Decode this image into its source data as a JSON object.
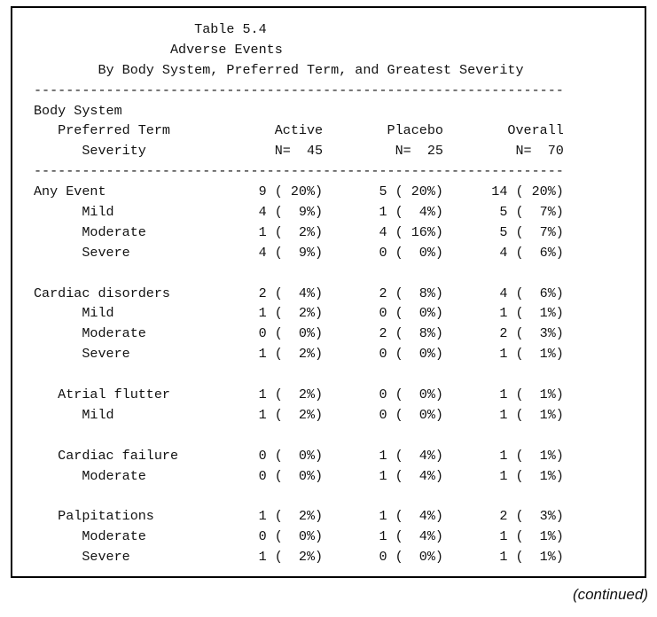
{
  "document": {
    "lines": [
      "                    Table 5.4",
      "                 Adverse Events",
      "        By Body System, Preferred Term, and Greatest Severity",
      "------------------------------------------------------------------",
      "Body System",
      "   Preferred Term             Active        Placebo        Overall",
      "      Severity                N=  45         N=  25         N=  70",
      "------------------------------------------------------------------",
      "Any Event                   9 ( 20%)       5 ( 20%)      14 ( 20%)",
      "      Mild                  4 (  9%)       1 (  4%)       5 (  7%)",
      "      Moderate              1 (  2%)       4 ( 16%)       5 (  7%)",
      "      Severe                4 (  9%)       0 (  0%)       4 (  6%)",
      "",
      "Cardiac disorders           2 (  4%)       2 (  8%)       4 (  6%)",
      "      Mild                  1 (  2%)       0 (  0%)       1 (  1%)",
      "      Moderate              0 (  0%)       2 (  8%)       2 (  3%)",
      "      Severe                1 (  2%)       0 (  0%)       1 (  1%)",
      "",
      "   Atrial flutter           1 (  2%)       0 (  0%)       1 (  1%)",
      "      Mild                  1 (  2%)       0 (  0%)       1 (  1%)",
      "",
      "   Cardiac failure          0 (  0%)       1 (  4%)       1 (  1%)",
      "      Moderate              0 (  0%)       1 (  4%)       1 (  1%)",
      "",
      "   Palpitations             1 (  2%)       1 (  4%)       2 (  3%)",
      "      Moderate              0 (  0%)       1 (  4%)       1 (  1%)",
      "      Severe                1 (  2%)       0 (  0%)       1 (  1%)"
    ],
    "continued_label": "(continued)"
  }
}
